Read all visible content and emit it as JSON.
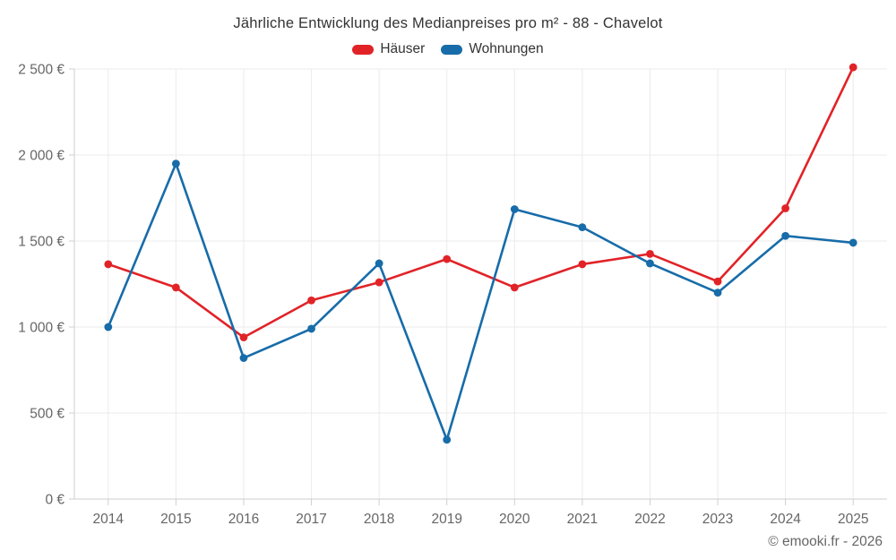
{
  "chart_data": {
    "type": "line",
    "title": "Jährliche Entwicklung des Medianpreises pro m² - 88 - Chavelot",
    "categories": [
      "2014",
      "2015",
      "2016",
      "2017",
      "2018",
      "2019",
      "2020",
      "2021",
      "2022",
      "2023",
      "2024",
      "2025"
    ],
    "series": [
      {
        "name": "Häuser",
        "color": "#e12328",
        "values": [
          1365,
          1230,
          940,
          1155,
          1260,
          1395,
          1230,
          1365,
          1425,
          1265,
          1690,
          2510
        ]
      },
      {
        "name": "Wohnungen",
        "color": "#176ca9",
        "values": [
          1000,
          1950,
          820,
          990,
          1370,
          345,
          1685,
          1580,
          1370,
          1200,
          1530,
          1490
        ]
      }
    ],
    "xlabel": "",
    "ylabel": "",
    "ylim": [
      0,
      2500
    ],
    "ytick_step": 500,
    "ytick_labels": [
      "0 €",
      "500 €",
      "1 000 €",
      "1 500 €",
      "2 000 €",
      "2 500 €"
    ],
    "grid": true,
    "legend_position": "top",
    "credits": "© emooki.fr - 2026"
  },
  "style": {
    "background": "#ffffff",
    "title_color": "#333333",
    "label_color": "#666666",
    "gridline_color": "#ebebeb",
    "axis_line_color": "#cfcfcf"
  }
}
